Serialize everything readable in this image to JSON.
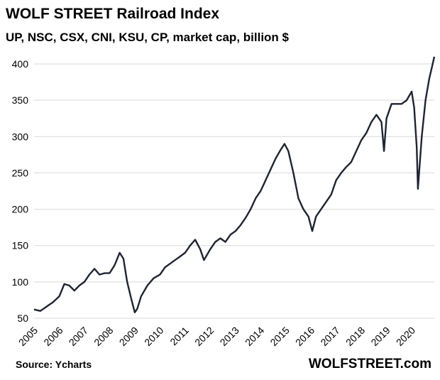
{
  "chart_data": {
    "type": "line",
    "title": "WOLF STREET Railroad Index",
    "subtitle": "UP, NSC, CSX, CNI, KSU, CP, market cap, billion $",
    "source": "Source: Ycharts",
    "brand": "WOLFSTREET.com",
    "xlabel": "",
    "ylabel": "",
    "ylim": [
      50,
      420
    ],
    "yticks": [
      50,
      100,
      150,
      200,
      250,
      300,
      350,
      400
    ],
    "xticks": [
      "2005",
      "2006",
      "2007",
      "2008",
      "2009",
      "2010",
      "2011",
      "2012",
      "2013",
      "2014",
      "2015",
      "2016",
      "2017",
      "2018",
      "2019",
      "2020"
    ],
    "xlim": [
      2005.0,
      2020.9
    ],
    "grid": "horizontal",
    "legend": "none",
    "line_color": "#1f2430",
    "series": [
      {
        "x": [
          2005.0,
          2005.25,
          2005.5,
          2005.75,
          2006.0,
          2006.2,
          2006.4,
          2006.6,
          2006.8,
          2007.0,
          2007.2,
          2007.4,
          2007.6,
          2007.8,
          2008.0,
          2008.2,
          2008.4,
          2008.55,
          2008.7,
          2008.85,
          2009.0,
          2009.1,
          2009.25,
          2009.5,
          2009.75,
          2010.0,
          2010.2,
          2010.4,
          2010.6,
          2010.8,
          2011.0,
          2011.2,
          2011.4,
          2011.6,
          2011.75,
          2012.0,
          2012.2,
          2012.4,
          2012.6,
          2012.8,
          2013.0,
          2013.2,
          2013.4,
          2013.6,
          2013.8,
          2014.0,
          2014.2,
          2014.4,
          2014.6,
          2014.8,
          2014.95,
          2015.1,
          2015.3,
          2015.5,
          2015.7,
          2015.9,
          2016.05,
          2016.2,
          2016.4,
          2016.6,
          2016.8,
          2017.0,
          2017.2,
          2017.4,
          2017.6,
          2017.8,
          2018.0,
          2018.2,
          2018.4,
          2018.6,
          2018.8,
          2018.9,
          2019.0,
          2019.2,
          2019.4,
          2019.6,
          2019.8,
          2020.0,
          2020.1,
          2020.2,
          2020.25,
          2020.4,
          2020.55,
          2020.7,
          2020.8,
          2020.9
        ],
        "values": [
          62,
          60,
          66,
          72,
          80,
          97,
          95,
          88,
          95,
          100,
          110,
          118,
          110,
          112,
          112,
          123,
          140,
          132,
          100,
          78,
          58,
          63,
          80,
          95,
          105,
          110,
          120,
          125,
          130,
          135,
          140,
          150,
          158,
          145,
          130,
          145,
          155,
          160,
          155,
          165,
          170,
          178,
          188,
          200,
          215,
          225,
          240,
          255,
          270,
          282,
          290,
          280,
          250,
          215,
          200,
          190,
          170,
          190,
          200,
          210,
          220,
          240,
          250,
          258,
          265,
          280,
          295,
          305,
          320,
          330,
          320,
          280,
          325,
          345,
          345,
          345,
          350,
          362,
          340,
          285,
          228,
          300,
          350,
          380,
          395,
          410
        ]
      }
    ]
  }
}
